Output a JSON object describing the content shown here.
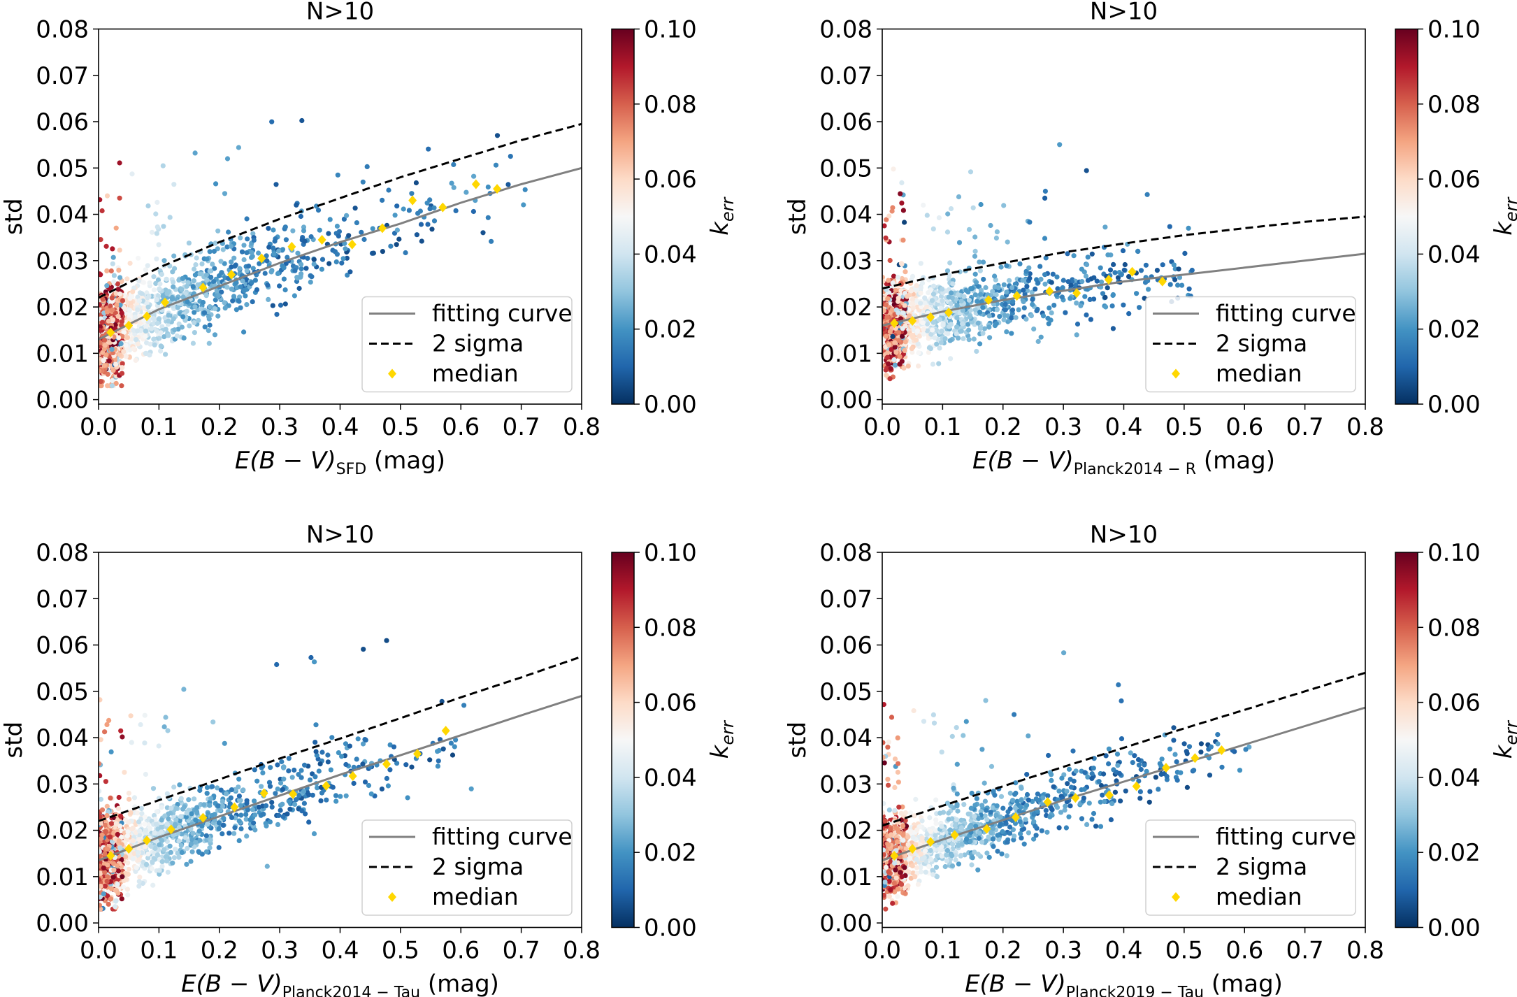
{
  "chart_data": [
    {
      "type": "scatter",
      "title": "N>10",
      "xlabel": {
        "prefix": "E(B − V)",
        "subscript": "SFD",
        "suffix": " (mag)"
      },
      "ylabel": "std",
      "xlim": [
        0,
        0.8
      ],
      "ylim": [
        0,
        0.08
      ],
      "grid": false,
      "xticks": [
        "0.0",
        "0.1",
        "0.2",
        "0.3",
        "0.4",
        "0.5",
        "0.6",
        "0.7",
        "0.8"
      ],
      "yticks": [
        "0.00",
        "0.01",
        "0.02",
        "0.03",
        "0.04",
        "0.05",
        "0.06",
        "0.07",
        "0.08"
      ],
      "colorbar": {
        "label_base": "k",
        "label_sub": "err",
        "range": [
          0,
          0.1
        ],
        "ticks": [
          "0.00",
          "0.02",
          "0.04",
          "0.06",
          "0.08",
          "0.10"
        ],
        "colormap": "RdBu_r"
      },
      "legend": {
        "position": "lower-right",
        "entries": [
          "fitting curve",
          "2 sigma",
          "median"
        ]
      },
      "series": [
        {
          "name": "fitting curve",
          "color": "#808080",
          "x": [
            0,
            0.1,
            0.2,
            0.3,
            0.4,
            0.5,
            0.6,
            0.7,
            0.8
          ],
          "y": [
            0.013,
            0.0195,
            0.0245,
            0.0295,
            0.034,
            0.038,
            0.0425,
            0.0465,
            0.05
          ]
        },
        {
          "name": "2 sigma",
          "color": "#000000",
          "x": [
            0,
            0.1,
            0.2,
            0.3,
            0.4,
            0.5,
            0.6,
            0.7,
            0.8
          ],
          "y": [
            0.022,
            0.0285,
            0.034,
            0.039,
            0.0435,
            0.048,
            0.052,
            0.056,
            0.0595
          ]
        },
        {
          "name": "median",
          "color": "#ffd700",
          "x": [
            0.02,
            0.05,
            0.08,
            0.11,
            0.173,
            0.22,
            0.27,
            0.32,
            0.37,
            0.42,
            0.47,
            0.52,
            0.57,
            0.625,
            0.66
          ],
          "y": [
            0.0145,
            0.016,
            0.018,
            0.021,
            0.0242,
            0.027,
            0.0305,
            0.033,
            0.0345,
            0.0335,
            0.037,
            0.043,
            0.0415,
            0.0465,
            0.0455
          ]
        }
      ]
    },
    {
      "type": "scatter",
      "title": "N>10",
      "xlabel": {
        "prefix": "E(B − V)",
        "subscript": "Planck2014 − R",
        "suffix": " (mag)"
      },
      "ylabel": "std",
      "xlim": [
        0,
        0.8
      ],
      "ylim": [
        0,
        0.08
      ],
      "grid": false,
      "xticks": [
        "0.0",
        "0.1",
        "0.2",
        "0.3",
        "0.4",
        "0.5",
        "0.6",
        "0.7",
        "0.8"
      ],
      "yticks": [
        "0.00",
        "0.01",
        "0.02",
        "0.03",
        "0.04",
        "0.05",
        "0.06",
        "0.07",
        "0.08"
      ],
      "colorbar": {
        "label_base": "k",
        "label_sub": "err",
        "range": [
          0,
          0.1
        ],
        "ticks": [
          "0.00",
          "0.02",
          "0.04",
          "0.06",
          "0.08",
          "0.10"
        ],
        "colormap": "RdBu_r"
      },
      "legend": {
        "position": "lower-right",
        "entries": [
          "fitting curve",
          "2 sigma",
          "median"
        ]
      },
      "series": [
        {
          "name": "fitting curve",
          "color": "#808080",
          "x": [
            0,
            0.1,
            0.2,
            0.3,
            0.4,
            0.5,
            0.6,
            0.7,
            0.8
          ],
          "y": [
            0.016,
            0.019,
            0.0215,
            0.0235,
            0.0255,
            0.027,
            0.0285,
            0.03,
            0.0315
          ]
        },
        {
          "name": "2 sigma",
          "color": "#000000",
          "x": [
            0,
            0.1,
            0.2,
            0.3,
            0.4,
            0.5,
            0.6,
            0.7,
            0.8
          ],
          "y": [
            0.024,
            0.027,
            0.0295,
            0.0318,
            0.0337,
            0.0355,
            0.037,
            0.0384,
            0.0395
          ]
        },
        {
          "name": "median",
          "color": "#ffd700",
          "x": [
            0.02,
            0.05,
            0.08,
            0.11,
            0.176,
            0.223,
            0.277,
            0.322,
            0.375,
            0.414,
            0.464
          ],
          "y": [
            0.0165,
            0.017,
            0.0178,
            0.0188,
            0.0215,
            0.0224,
            0.0234,
            0.023,
            0.0259,
            0.0276,
            0.0255
          ]
        }
      ]
    },
    {
      "type": "scatter",
      "title": "N>10",
      "xlabel": {
        "prefix": "E(B − V)",
        "subscript": "Planck2014 − Tau",
        "suffix": " (mag)"
      },
      "ylabel": "std",
      "xlim": [
        0,
        0.8
      ],
      "ylim": [
        0,
        0.08
      ],
      "grid": false,
      "xticks": [
        "0.0",
        "0.1",
        "0.2",
        "0.3",
        "0.4",
        "0.5",
        "0.6",
        "0.7",
        "0.8"
      ],
      "yticks": [
        "0.00",
        "0.01",
        "0.02",
        "0.03",
        "0.04",
        "0.05",
        "0.06",
        "0.07",
        "0.08"
      ],
      "colorbar": {
        "label_base": "k",
        "label_sub": "err",
        "range": [
          0,
          0.1
        ],
        "ticks": [
          "0.00",
          "0.02",
          "0.04",
          "0.06",
          "0.08",
          "0.10"
        ],
        "colormap": "RdBu_r"
      },
      "legend": {
        "position": "lower-right",
        "entries": [
          "fitting curve",
          "2 sigma",
          "median"
        ]
      },
      "series": [
        {
          "name": "fitting curve",
          "color": "#808080",
          "x": [
            0,
            0.1,
            0.2,
            0.3,
            0.4,
            0.5,
            0.6,
            0.7,
            0.8
          ],
          "y": [
            0.0135,
            0.0185,
            0.023,
            0.0275,
            0.032,
            0.0362,
            0.0405,
            0.0448,
            0.049
          ]
        },
        {
          "name": "2 sigma",
          "color": "#000000",
          "x": [
            0,
            0.1,
            0.2,
            0.3,
            0.4,
            0.5,
            0.6,
            0.7,
            0.8
          ],
          "y": [
            0.022,
            0.0265,
            0.031,
            0.0355,
            0.0398,
            0.0442,
            0.0487,
            0.053,
            0.0575
          ]
        },
        {
          "name": "median",
          "color": "#ffd700",
          "x": [
            0.02,
            0.05,
            0.08,
            0.12,
            0.173,
            0.225,
            0.274,
            0.322,
            0.377,
            0.421,
            0.477,
            0.528,
            0.575
          ],
          "y": [
            0.0145,
            0.016,
            0.0178,
            0.0202,
            0.0227,
            0.025,
            0.028,
            0.0278,
            0.0296,
            0.0317,
            0.0343,
            0.0365,
            0.0415
          ]
        }
      ]
    },
    {
      "type": "scatter",
      "title": "N>10",
      "xlabel": {
        "prefix": "E(B − V)",
        "subscript": "Planck2019 − Tau",
        "suffix": " (mag)"
      },
      "ylabel": "std",
      "xlim": [
        0,
        0.8
      ],
      "ylim": [
        0,
        0.08
      ],
      "grid": false,
      "xticks": [
        "0.0",
        "0.1",
        "0.2",
        "0.3",
        "0.4",
        "0.5",
        "0.6",
        "0.7",
        "0.8"
      ],
      "yticks": [
        "0.00",
        "0.01",
        "0.02",
        "0.03",
        "0.04",
        "0.05",
        "0.06",
        "0.07",
        "0.08"
      ],
      "colorbar": {
        "label_base": "k",
        "label_sub": "err",
        "range": [
          0,
          0.1
        ],
        "ticks": [
          "0.00",
          "0.02",
          "0.04",
          "0.06",
          "0.08",
          "0.10"
        ],
        "colormap": "RdBu_r"
      },
      "legend": {
        "position": "lower-right",
        "entries": [
          "fitting curve",
          "2 sigma",
          "median"
        ]
      },
      "series": [
        {
          "name": "fitting curve",
          "color": "#808080",
          "x": [
            0,
            0.1,
            0.2,
            0.3,
            0.4,
            0.5,
            0.6,
            0.7,
            0.8
          ],
          "y": [
            0.0135,
            0.018,
            0.0222,
            0.0265,
            0.0305,
            0.0345,
            0.0385,
            0.0425,
            0.0465
          ]
        },
        {
          "name": "2 sigma",
          "color": "#000000",
          "x": [
            0,
            0.1,
            0.2,
            0.3,
            0.4,
            0.5,
            0.6,
            0.7,
            0.8
          ],
          "y": [
            0.021,
            0.0253,
            0.0295,
            0.0337,
            0.0378,
            0.042,
            0.046,
            0.05,
            0.054
          ]
        },
        {
          "name": "median",
          "color": "#ffd700",
          "x": [
            0.02,
            0.05,
            0.08,
            0.12,
            0.173,
            0.221,
            0.274,
            0.32,
            0.376,
            0.421,
            0.47,
            0.518,
            0.562
          ],
          "y": [
            0.0145,
            0.016,
            0.0175,
            0.019,
            0.0203,
            0.0228,
            0.0261,
            0.027,
            0.0276,
            0.0295,
            0.0335,
            0.0356,
            0.0373
          ]
        }
      ]
    }
  ]
}
